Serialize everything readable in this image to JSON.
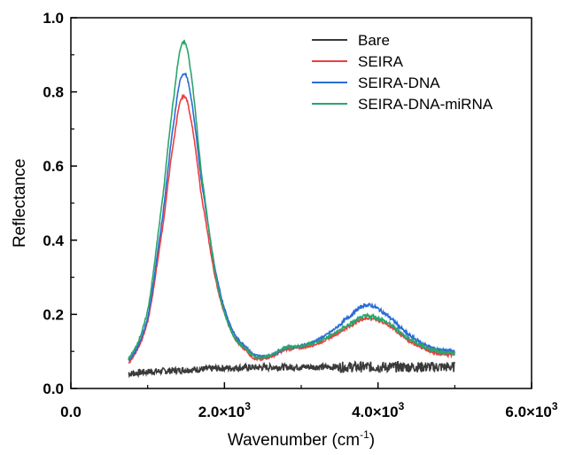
{
  "chart_data": {
    "type": "line",
    "title": "",
    "xlabel": "Wavenumber (cm",
    "xlabel_sup": "-1",
    "xlabel_close": ")",
    "ylabel": "Reflectance",
    "xlim": [
      0,
      6000
    ],
    "ylim": [
      0,
      1.0
    ],
    "x_ticks": [
      {
        "value": 0,
        "label": "0.0"
      },
      {
        "value": 2000,
        "label": "2.0×10",
        "sup": "3"
      },
      {
        "value": 4000,
        "label": "4.0×10",
        "sup": "3"
      },
      {
        "value": 6000,
        "label": "6.0×10",
        "sup": "3"
      }
    ],
    "y_ticks": [
      {
        "value": 0.0,
        "label": "0.0"
      },
      {
        "value": 0.2,
        "label": "0.2"
      },
      {
        "value": 0.4,
        "label": "0.4"
      },
      {
        "value": 0.6,
        "label": "0.6"
      },
      {
        "value": 0.8,
        "label": "0.8"
      },
      {
        "value": 1.0,
        "label": "1.0"
      }
    ],
    "grid": false,
    "legend_position": "top-right",
    "series": [
      {
        "name": "Bare",
        "color": "#3a3a3a",
        "x": [
          750,
          1000,
          1500,
          2000,
          2500,
          3000,
          3500,
          4000,
          4500,
          5000
        ],
        "y": [
          0.04,
          0.045,
          0.05,
          0.055,
          0.057,
          0.058,
          0.058,
          0.058,
          0.058,
          0.058
        ]
      },
      {
        "name": "SEIRA",
        "color": "#e8403f",
        "x": [
          750,
          1000,
          1200,
          1350,
          1450,
          1550,
          1700,
          1900,
          2100,
          2300,
          2400,
          2600,
          2800,
          3000,
          3200,
          3400,
          3600,
          3850,
          4100,
          4400,
          4700,
          5000
        ],
        "y": [
          0.07,
          0.18,
          0.44,
          0.68,
          0.785,
          0.74,
          0.52,
          0.28,
          0.15,
          0.1,
          0.08,
          0.085,
          0.105,
          0.11,
          0.12,
          0.14,
          0.165,
          0.19,
          0.175,
          0.13,
          0.1,
          0.09
        ]
      },
      {
        "name": "SEIRA-DNA",
        "color": "#2b6cd6",
        "x": [
          750,
          1000,
          1200,
          1350,
          1450,
          1550,
          1700,
          1900,
          2100,
          2300,
          2400,
          2600,
          2800,
          3000,
          3200,
          3400,
          3600,
          3850,
          4100,
          4400,
          4700,
          5000
        ],
        "y": [
          0.075,
          0.19,
          0.47,
          0.73,
          0.845,
          0.8,
          0.56,
          0.3,
          0.16,
          0.11,
          0.09,
          0.09,
          0.11,
          0.115,
          0.13,
          0.155,
          0.19,
          0.225,
          0.2,
          0.145,
          0.11,
          0.1
        ]
      },
      {
        "name": "SEIRA-DNA-miRNA",
        "color": "#2aa56b",
        "x": [
          750,
          1000,
          1200,
          1350,
          1450,
          1550,
          1700,
          1900,
          2100,
          2300,
          2400,
          2600,
          2800,
          3000,
          3200,
          3400,
          3600,
          3850,
          4100,
          4400,
          4700,
          5000
        ],
        "y": [
          0.08,
          0.21,
          0.52,
          0.8,
          0.93,
          0.87,
          0.58,
          0.29,
          0.15,
          0.105,
          0.085,
          0.09,
          0.11,
          0.115,
          0.125,
          0.145,
          0.17,
          0.195,
          0.18,
          0.135,
          0.105,
          0.095
        ]
      }
    ]
  }
}
